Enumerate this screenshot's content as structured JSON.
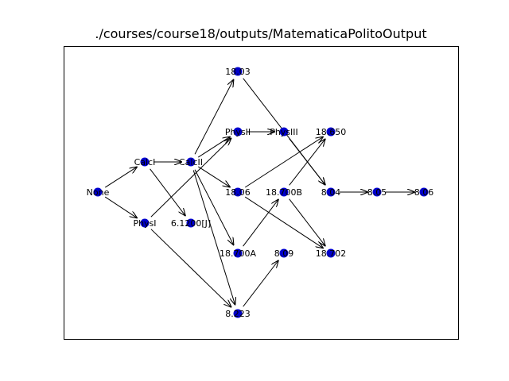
{
  "title": "./courses/course18/outputs/MatematicaPolitoOutput",
  "colors": {
    "node": "#0000cc",
    "edge": "#000000",
    "frame": "#000000",
    "background": "#ffffff"
  },
  "nodes": [
    {
      "id": "None",
      "label": "None"
    },
    {
      "id": "CalcI",
      "label": "CalcI"
    },
    {
      "id": "PhysI",
      "label": "PhysI"
    },
    {
      "id": "CalcII",
      "label": "CalcII"
    },
    {
      "id": "6.1200[J]",
      "label": "6.1200[J]"
    },
    {
      "id": "18.03",
      "label": "18.03"
    },
    {
      "id": "PhysII",
      "label": "PhysII"
    },
    {
      "id": "18.06",
      "label": "18.06"
    },
    {
      "id": "18.700A",
      "label": "18.700A"
    },
    {
      "id": "8.223",
      "label": "8.223"
    },
    {
      "id": "PhysIII",
      "label": "PhysIII"
    },
    {
      "id": "18.700B",
      "label": "18.700B"
    },
    {
      "id": "8.09",
      "label": "8.09"
    },
    {
      "id": "18.650",
      "label": "18.650"
    },
    {
      "id": "8.04",
      "label": "8.04"
    },
    {
      "id": "18.702",
      "label": "18.702"
    },
    {
      "id": "8.05",
      "label": "8.05"
    },
    {
      "id": "8.06",
      "label": "8.06"
    }
  ],
  "edges": [
    [
      "None",
      "CalcI"
    ],
    [
      "None",
      "PhysI"
    ],
    [
      "CalcI",
      "CalcII"
    ],
    [
      "CalcI",
      "6.1200[J]"
    ],
    [
      "PhysI",
      "PhysII"
    ],
    [
      "PhysI",
      "8.223"
    ],
    [
      "CalcII",
      "18.03"
    ],
    [
      "CalcII",
      "PhysII"
    ],
    [
      "CalcII",
      "18.06"
    ],
    [
      "CalcII",
      "18.700A"
    ],
    [
      "CalcII",
      "8.223"
    ],
    [
      "18.03",
      "8.04"
    ],
    [
      "PhysII",
      "PhysIII"
    ],
    [
      "PhysIII",
      "8.04"
    ],
    [
      "18.06",
      "18.650"
    ],
    [
      "18.06",
      "18.702"
    ],
    [
      "18.700A",
      "18.700B"
    ],
    [
      "18.700B",
      "18.650"
    ],
    [
      "18.700B",
      "18.702"
    ],
    [
      "8.223",
      "8.09"
    ],
    [
      "8.04",
      "8.05"
    ],
    [
      "8.05",
      "8.06"
    ]
  ]
}
